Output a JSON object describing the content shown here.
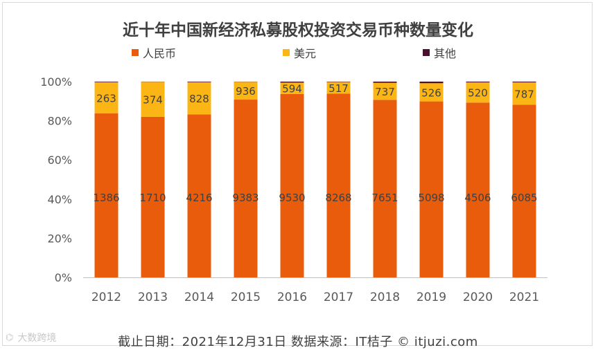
{
  "chart_data": {
    "type": "bar",
    "stacked": true,
    "percent": true,
    "title": "近十年中国新经济私募股权投资交易币种数量变化",
    "categories": [
      "2012",
      "2013",
      "2014",
      "2015",
      "2016",
      "2017",
      "2018",
      "2019",
      "2020",
      "2021"
    ],
    "series": [
      {
        "name": "人民币",
        "color": "#e95c0c",
        "labels": [
          1386,
          1710,
          4216,
          9383,
          9530,
          8268,
          7651,
          5098,
          4506,
          6085
        ],
        "shares": [
          83.8,
          82.0,
          83.3,
          90.8,
          93.7,
          93.9,
          90.7,
          89.9,
          89.3,
          88.2
        ]
      },
      {
        "name": "美元",
        "color": "#fbb515",
        "labels": [
          263,
          374,
          828,
          936,
          594,
          517,
          737,
          526,
          520,
          787
        ],
        "shares": [
          15.9,
          17.9,
          16.4,
          9.1,
          5.8,
          5.9,
          8.7,
          9.3,
          10.3,
          11.4
        ]
      },
      {
        "name": "其他",
        "color": "#4a0f2c",
        "labels": [
          null,
          null,
          null,
          null,
          null,
          null,
          null,
          null,
          null,
          null
        ],
        "shares": [
          0.3,
          0.1,
          0.3,
          0.1,
          0.5,
          0.2,
          0.6,
          0.8,
          0.4,
          0.4
        ]
      }
    ],
    "yticks": [
      "0%",
      "20%",
      "40%",
      "60%",
      "80%",
      "100%"
    ],
    "ylim": [
      0,
      100
    ],
    "legend_position": "top"
  },
  "footer": {
    "text": "截止日期：2021年12月31日    数据来源：IT桔子 © itjuzi.com"
  },
  "watermark": {
    "logo_text": "大数跨境"
  }
}
